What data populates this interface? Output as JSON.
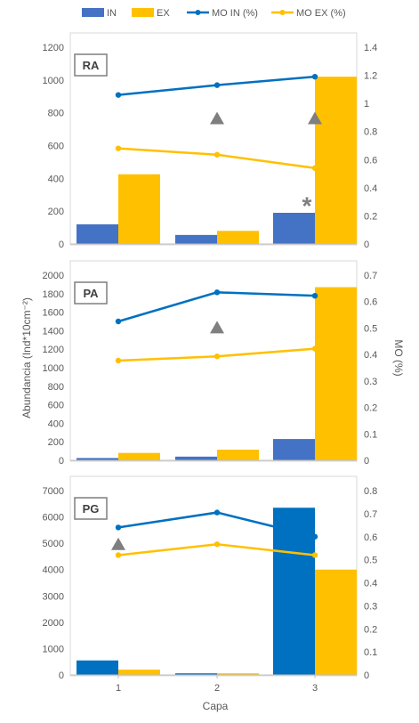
{
  "legend": [
    {
      "label": "IN",
      "kind": "bar",
      "color": "#4472c4"
    },
    {
      "label": "EX",
      "kind": "bar",
      "color": "#ffc000"
    },
    {
      "label": "MO IN (%)",
      "kind": "line",
      "color": "#0070c0"
    },
    {
      "label": "MO EX (%)",
      "kind": "line",
      "color": "#ffc000"
    }
  ],
  "ylabel_left": "Abundancia (Ind*10cm⁻²)",
  "ylabel_right": "MO (%)",
  "xlabel": "Capa",
  "categories": [
    "1",
    "2",
    "3"
  ],
  "chart_data": [
    {
      "type": "bar",
      "panel_label": "RA",
      "categories": [
        "1",
        "2",
        "3"
      ],
      "series": [
        {
          "name": "IN",
          "values": [
            120,
            55,
            190
          ],
          "color": "#4472c4"
        },
        {
          "name": "EX",
          "values": [
            425,
            80,
            1020
          ],
          "color": "#ffc000"
        }
      ],
      "lines": [
        {
          "name": "MO IN (%)",
          "values": [
            1.06,
            1.13,
            1.19
          ],
          "color": "#0070c0"
        },
        {
          "name": "MO EX (%)",
          "values": [
            0.68,
            0.635,
            0.54
          ],
          "color": "#ffc000"
        }
      ],
      "ylim": [
        0,
        1200
      ],
      "yticks": [
        "0",
        "200",
        "400",
        "600",
        "800",
        "1000",
        "1200"
      ],
      "y2lim": [
        0,
        1.4
      ],
      "y2ticks": [
        "0",
        "0.2",
        "0.4",
        "0.6",
        "0.8",
        "1",
        "1.2",
        "1.4"
      ],
      "markers": [
        {
          "type": "triangle",
          "category": "2",
          "value": 0.89
        },
        {
          "type": "triangle",
          "category": "3",
          "value": 0.89
        },
        {
          "type": "asterisk",
          "category": "3",
          "value": 0.3
        }
      ]
    },
    {
      "type": "bar",
      "panel_label": "PA",
      "categories": [
        "1",
        "2",
        "3"
      ],
      "series": [
        {
          "name": "IN",
          "values": [
            25,
            40,
            230
          ],
          "color": "#4472c4"
        },
        {
          "name": "EX",
          "values": [
            80,
            115,
            1870
          ],
          "color": "#ffc000"
        }
      ],
      "lines": [
        {
          "name": "MO IN (%)",
          "values": [
            0.525,
            0.635,
            0.622
          ],
          "color": "#0070c0"
        },
        {
          "name": "MO EX (%)",
          "values": [
            0.377,
            0.393,
            0.422
          ],
          "color": "#ffc000"
        }
      ],
      "ylim": [
        0,
        2000
      ],
      "yticks": [
        "0",
        "200",
        "400",
        "600",
        "800",
        "1000",
        "1200",
        "1400",
        "1600",
        "1800",
        "2000"
      ],
      "y2lim": [
        0,
        0.7
      ],
      "y2ticks": [
        "0",
        "0.1",
        "0.2",
        "0.3",
        "0.4",
        "0.5",
        "0.6",
        "0.7"
      ],
      "markers": [
        {
          "type": "triangle",
          "category": "2",
          "value": 0.5
        }
      ]
    },
    {
      "type": "bar",
      "panel_label": "PG",
      "categories": [
        "1",
        "2",
        "3"
      ],
      "series": [
        {
          "name": "IN",
          "values": [
            550,
            60,
            6350
          ],
          "color": "#0070c0"
        },
        {
          "name": "EX",
          "values": [
            200,
            60,
            4000
          ],
          "color": "#ffc000"
        }
      ],
      "lines": [
        {
          "name": "MO IN (%)",
          "values": [
            0.64,
            0.705,
            0.6
          ],
          "color": "#0070c0"
        },
        {
          "name": "MO EX (%)",
          "values": [
            0.52,
            0.567,
            0.52
          ],
          "color": "#ffc000"
        }
      ],
      "ylim": [
        0,
        7000
      ],
      "yticks": [
        "0",
        "1000",
        "2000",
        "3000",
        "4000",
        "5000",
        "6000",
        "7000"
      ],
      "y2lim": [
        0,
        0.8
      ],
      "y2ticks": [
        "0",
        "0.1",
        "0.2",
        "0.3",
        "0.4",
        "0.5",
        "0.6",
        "0.7",
        "0.8"
      ],
      "markers": [
        {
          "type": "triangle",
          "category": "1",
          "value": 0.565
        }
      ]
    }
  ]
}
